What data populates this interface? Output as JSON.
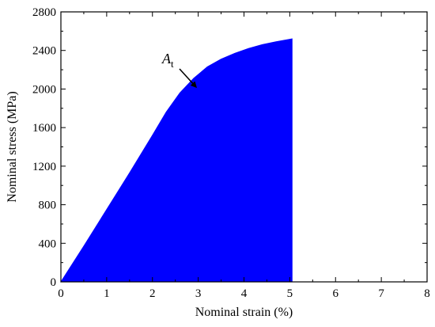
{
  "chart_data": {
    "type": "area",
    "xlabel": "Nominal strain (%)",
    "ylabel": "Nominal stress (MPa)",
    "xlim": [
      0,
      8
    ],
    "ylim": [
      0,
      2800
    ],
    "xticks": [
      0,
      1,
      2,
      3,
      4,
      5,
      6,
      7,
      8
    ],
    "yticks": [
      0,
      400,
      800,
      1200,
      1600,
      2000,
      2400,
      2800
    ],
    "grid": false,
    "fill_color": "#0000ff",
    "series": [
      {
        "x": [
          0,
          0.5,
          1.0,
          1.5,
          2.0,
          2.3,
          2.6,
          2.9,
          3.2,
          3.5,
          3.8,
          4.1,
          4.4,
          4.7,
          5.05
        ],
        "y": [
          0,
          370,
          750,
          1130,
          1520,
          1760,
          1960,
          2110,
          2230,
          2310,
          2370,
          2420,
          2460,
          2490,
          2520
        ]
      }
    ],
    "fill_end_x": 5.05,
    "annotation": {
      "text_main": "A",
      "text_sub": "t",
      "target_x": 3.0,
      "target_y": 1990
    }
  }
}
